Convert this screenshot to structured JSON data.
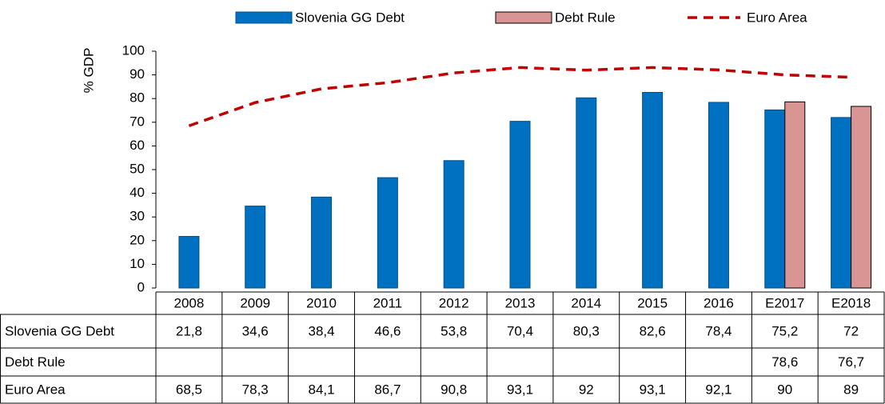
{
  "chart_data": {
    "type": "bar",
    "y_label": "% GDP",
    "categories": [
      "2008",
      "2009",
      "2010",
      "2011",
      "2012",
      "2013",
      "2014",
      "2015",
      "2016",
      "E2017",
      "E2018"
    ],
    "series": [
      {
        "name": "Slovenia GG Debt",
        "type": "bar",
        "color": "#0070c0",
        "values": [
          21.8,
          34.6,
          38.4,
          46.6,
          53.8,
          70.4,
          80.3,
          82.6,
          78.4,
          75.2,
          72
        ],
        "value_labels": [
          "21,8",
          "34,6",
          "38,4",
          "46,6",
          "53,8",
          "70,4",
          "80,3",
          "82,6",
          "78,4",
          "75,2",
          "72"
        ]
      },
      {
        "name": "Debt Rule",
        "type": "bar",
        "color": "#d99594",
        "values": [
          null,
          null,
          null,
          null,
          null,
          null,
          null,
          null,
          null,
          78.6,
          76.7
        ],
        "value_labels": [
          null,
          null,
          null,
          null,
          null,
          null,
          null,
          null,
          null,
          "78,6",
          "76,7"
        ]
      },
      {
        "name": "Euro Area",
        "type": "line",
        "color": "#c00000",
        "values": [
          68.5,
          78.3,
          84.1,
          86.7,
          90.8,
          93.1,
          92,
          93.1,
          92.1,
          90,
          89
        ],
        "value_labels": [
          "68,5",
          "78,3",
          "84,1",
          "86,7",
          "90,8",
          "93,1",
          "92",
          "93,1",
          "92,1",
          "90",
          "89"
        ]
      }
    ],
    "ylim": [
      0,
      100
    ],
    "yticks": [
      0,
      10,
      20,
      30,
      40,
      50,
      60,
      70,
      80,
      90,
      100
    ],
    "grid": false,
    "legend": "top",
    "data_table": true
  }
}
